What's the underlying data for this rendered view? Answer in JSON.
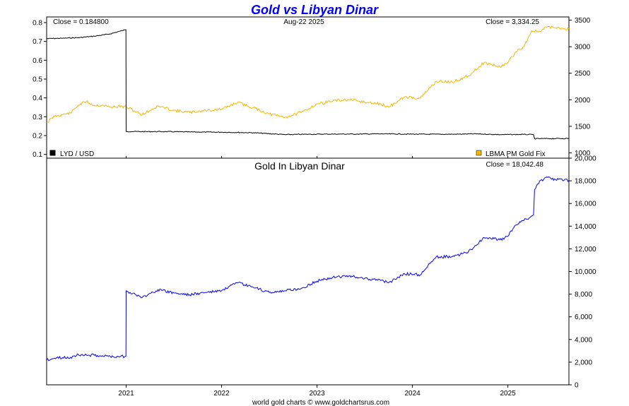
{
  "footer": "world gold charts © www.goldchartsrus.com",
  "chart_data": [
    {
      "type": "line",
      "title": "Gold vs Libyan Dinar",
      "date_label": "Aug-22  2025",
      "close_left": "Close = 0.184800",
      "close_right": "Close = 3,334.25",
      "x_range": [
        "2020-03",
        "2025-08-22"
      ],
      "x_ticks": [
        "2021",
        "2022",
        "2023",
        "2024",
        "2025"
      ],
      "y_left_range": [
        0.08,
        0.83
      ],
      "y_left_ticks": [
        "0.8",
        "0.7",
        "0.6",
        "0.5",
        "0.4",
        "0.3",
        "0.2",
        "0.1"
      ],
      "y_right_range": [
        900,
        3560
      ],
      "y_right_ticks": [
        "3500",
        "3000",
        "2500",
        "2000",
        "1500",
        "1000"
      ],
      "series": [
        {
          "name": "LYD / USD",
          "axis": "left",
          "color": "#000000",
          "points": [
            [
              "2020-03",
              0.715
            ],
            [
              "2020-05",
              0.717
            ],
            [
              "2020-07",
              0.72
            ],
            [
              "2020-09",
              0.728
            ],
            [
              "2020-11",
              0.74
            ],
            [
              "2020-12",
              0.752
            ],
            [
              "2020-12-31",
              0.762
            ],
            [
              "2021-01-01",
              0.222
            ],
            [
              "2021-03",
              0.221
            ],
            [
              "2021-06",
              0.221
            ],
            [
              "2021-09",
              0.219
            ],
            [
              "2022-01",
              0.218
            ],
            [
              "2022-05",
              0.215
            ],
            [
              "2022-09",
              0.205
            ],
            [
              "2022-12",
              0.207
            ],
            [
              "2023-03",
              0.208
            ],
            [
              "2023-06",
              0.208
            ],
            [
              "2023-09",
              0.209
            ],
            [
              "2023-12",
              0.208
            ],
            [
              "2024-03",
              0.207
            ],
            [
              "2024-06",
              0.207
            ],
            [
              "2024-09",
              0.209
            ],
            [
              "2024-12",
              0.205
            ],
            [
              "2025-03",
              0.206
            ],
            [
              "2025-04-08",
              0.205
            ],
            [
              "2025-04-12",
              0.183
            ],
            [
              "2025-06",
              0.184
            ],
            [
              "2025-08-22",
              0.1848
            ]
          ]
        },
        {
          "name": "LBMA PM Gold Fix",
          "axis": "right",
          "color": "#f5b800",
          "points": [
            [
              "2020-03",
              1570
            ],
            [
              "2020-04",
              1690
            ],
            [
              "2020-05",
              1720
            ],
            [
              "2020-06",
              1750
            ],
            [
              "2020-07",
              1900
            ],
            [
              "2020-08",
              1970
            ],
            [
              "2020-09",
              1890
            ],
            [
              "2020-10",
              1900
            ],
            [
              "2020-11",
              1860
            ],
            [
              "2020-12",
              1875
            ],
            [
              "2021-01",
              1865
            ],
            [
              "2021-03",
              1720
            ],
            [
              "2021-05",
              1880
            ],
            [
              "2021-07",
              1800
            ],
            [
              "2021-09",
              1760
            ],
            [
              "2021-11",
              1800
            ],
            [
              "2022-01",
              1820
            ],
            [
              "2022-03",
              1950
            ],
            [
              "2022-05",
              1850
            ],
            [
              "2022-07",
              1730
            ],
            [
              "2022-09",
              1670
            ],
            [
              "2022-11",
              1760
            ],
            [
              "2023-01",
              1920
            ],
            [
              "2023-03",
              1980
            ],
            [
              "2023-05",
              2000
            ],
            [
              "2023-07",
              1950
            ],
            [
              "2023-09",
              1920
            ],
            [
              "2023-10",
              1860
            ],
            [
              "2023-12",
              2050
            ],
            [
              "2024-02",
              2030
            ],
            [
              "2024-04",
              2350
            ],
            [
              "2024-06",
              2330
            ],
            [
              "2024-08",
              2450
            ],
            [
              "2024-10",
              2700
            ],
            [
              "2024-12",
              2620
            ],
            [
              "2025-01",
              2700
            ],
            [
              "2025-02",
              2900
            ],
            [
              "2025-03",
              3000
            ],
            [
              "2025-04",
              3300
            ],
            [
              "2025-05",
              3280
            ],
            [
              "2025-06",
              3380
            ],
            [
              "2025-07",
              3350
            ],
            [
              "2025-08-22",
              3334.25
            ]
          ]
        }
      ],
      "legend": "bottom"
    },
    {
      "type": "line",
      "title": "Gold In Libyan Dinar",
      "close": "Close = 18,042.48",
      "y_range": [
        0,
        20000
      ],
      "y_ticks": [
        "20,000",
        "18,000",
        "16,000",
        "14,000",
        "12,000",
        "10,000",
        "8,000",
        "6,000",
        "4,000",
        "2,000",
        "0"
      ],
      "x_ticks": [
        "2021",
        "2022",
        "2023",
        "2024",
        "2025"
      ],
      "series": [
        {
          "color": "#0000ff",
          "points": [
            [
              "2020-03",
              2200
            ],
            [
              "2020-04",
              2350
            ],
            [
              "2020-05",
              2400
            ],
            [
              "2020-06",
              2430
            ],
            [
              "2020-07",
              2640
            ],
            [
              "2020-08",
              2620
            ],
            [
              "2020-09",
              2600
            ],
            [
              "2020-10",
              2570
            ],
            [
              "2020-11",
              2510
            ],
            [
              "2020-12",
              2500
            ],
            [
              "2020-12-31",
              2520
            ],
            [
              "2021-01-01",
              8300
            ],
            [
              "2021-03",
              7700
            ],
            [
              "2021-05",
              8400
            ],
            [
              "2021-07",
              8100
            ],
            [
              "2021-09",
              7950
            ],
            [
              "2021-11",
              8150
            ],
            [
              "2022-01",
              8300
            ],
            [
              "2022-03",
              9000
            ],
            [
              "2022-05",
              8600
            ],
            [
              "2022-07",
              8150
            ],
            [
              "2022-09",
              8300
            ],
            [
              "2022-11",
              8500
            ],
            [
              "2023-01",
              9150
            ],
            [
              "2023-03",
              9500
            ],
            [
              "2023-05",
              9600
            ],
            [
              "2023-07",
              9400
            ],
            [
              "2023-09",
              9200
            ],
            [
              "2023-10",
              9000
            ],
            [
              "2023-12",
              9800
            ],
            [
              "2024-02",
              9700
            ],
            [
              "2024-04",
              11300
            ],
            [
              "2024-06",
              11300
            ],
            [
              "2024-08",
              11700
            ],
            [
              "2024-10",
              13000
            ],
            [
              "2024-12",
              12800
            ],
            [
              "2025-01",
              13100
            ],
            [
              "2025-02",
              14100
            ],
            [
              "2025-03",
              14500
            ],
            [
              "2025-04-08",
              15000
            ],
            [
              "2025-04-12",
              17200
            ],
            [
              "2025-05",
              18000
            ],
            [
              "2025-06",
              18300
            ],
            [
              "2025-07",
              18100
            ],
            [
              "2025-08-22",
              18042.48
            ]
          ]
        }
      ]
    }
  ]
}
